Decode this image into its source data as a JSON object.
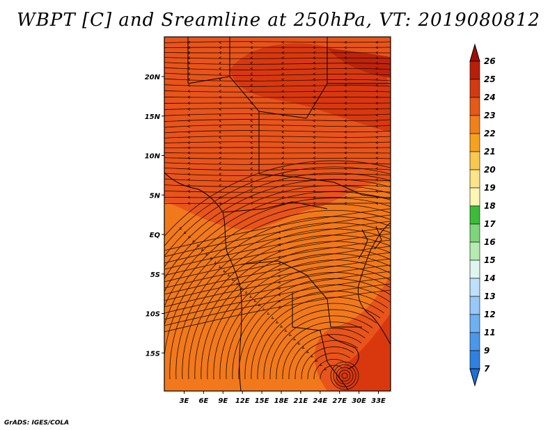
{
  "title": "WBPT [C] and Sreamline at 250hPa, VT: 2019080812",
  "credit": "GrADS: IGES/COLA",
  "axes": {
    "lat_ticks": [
      {
        "label": "20N",
        "value": 20
      },
      {
        "label": "15N",
        "value": 15
      },
      {
        "label": "10N",
        "value": 10
      },
      {
        "label": "5N",
        "value": 5
      },
      {
        "label": "EQ",
        "value": 0
      },
      {
        "label": "5S",
        "value": -5
      },
      {
        "label": "10S",
        "value": -10
      },
      {
        "label": "15S",
        "value": -15
      }
    ],
    "lon_ticks": [
      {
        "label": "3E",
        "value": 3
      },
      {
        "label": "6E",
        "value": 6
      },
      {
        "label": "9E",
        "value": 9
      },
      {
        "label": "12E",
        "value": 12
      },
      {
        "label": "15E",
        "value": 15
      },
      {
        "label": "18E",
        "value": 18
      },
      {
        "label": "21E",
        "value": 21
      },
      {
        "label": "24E",
        "value": 24
      },
      {
        "label": "27E",
        "value": 27
      },
      {
        "label": "30E",
        "value": 30
      },
      {
        "label": "33E",
        "value": 33
      }
    ]
  },
  "colorbar": {
    "labels": [
      "7",
      "9",
      "11",
      "12",
      "13",
      "14",
      "15",
      "16",
      "17",
      "18",
      "19",
      "20",
      "21",
      "22",
      "23",
      "24",
      "25",
      "26"
    ],
    "colors": [
      "#1f6fd6",
      "#2f80e0",
      "#4a97ec",
      "#6fb0f3",
      "#97c8f7",
      "#bfe0fb",
      "#e0f5f0",
      "#b6ebb0",
      "#7ed67a",
      "#3cbd3a",
      "#fdf6b6",
      "#fde38a",
      "#f9c84e",
      "#f7a21c",
      "#f2801a",
      "#e45a16",
      "#d43a10",
      "#b81f0a",
      "#a00d05"
    ]
  },
  "map_colors": {
    "region_23_24": "#e9541a",
    "region_22_23": "#f2791b",
    "region_24_25": "#d9380f",
    "region_25_26": "#c0230b"
  }
}
